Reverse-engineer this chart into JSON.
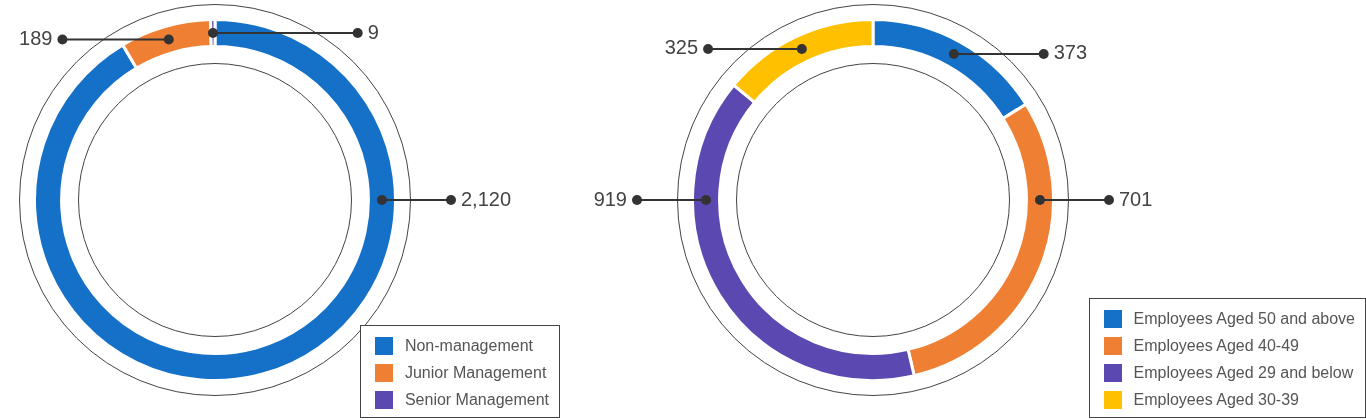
{
  "chart_data": [
    {
      "type": "donut",
      "categories": [
        "Non-management",
        "Junior Management",
        "Senior Management"
      ],
      "values": [
        2120,
        189,
        9
      ],
      "value_labels": [
        "2,120",
        "189",
        "9"
      ],
      "data_labels": true,
      "colors": [
        "#1570c8",
        "#ee7f33",
        "#5b48b0"
      ],
      "legend": "bottom right"
    },
    {
      "type": "donut",
      "categories": [
        "Employees Aged 50 and above",
        "Employees Aged 40-49",
        "Employees Aged 29 and below",
        "Employees Aged 30-39"
      ],
      "values": [
        373,
        701,
        919,
        325
      ],
      "colors": [
        "#1570c8",
        "#ee7f33",
        "#5b48b0",
        "#ffc000"
      ],
      "data_labels": true,
      "legend": "bottom right"
    }
  ]
}
